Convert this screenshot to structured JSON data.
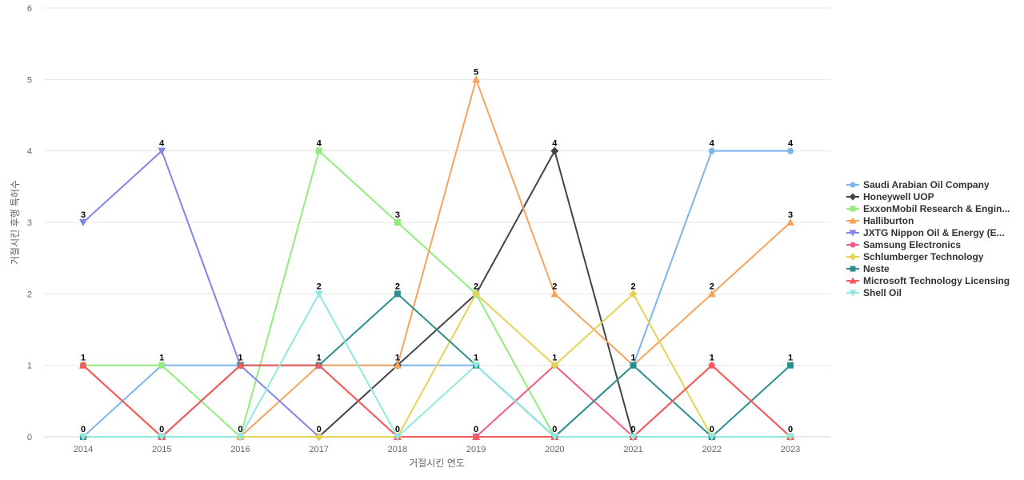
{
  "chart_data": {
    "type": "line",
    "title": "",
    "xlabel": "거절시킨 연도",
    "ylabel": "거절시킨 후행 특허수",
    "ylim": [
      0,
      6
    ],
    "y_ticks": [
      0,
      1,
      2,
      3,
      4,
      5,
      6
    ],
    "grid": true,
    "legend_position": "right",
    "categories": [
      "2014",
      "2015",
      "2016",
      "2017",
      "2018",
      "2019",
      "2020",
      "2021",
      "2022",
      "2023"
    ],
    "series": [
      {
        "name": "Saudi Arabian Oil Company",
        "color": "#7cb5ec",
        "marker": "circle",
        "values": [
          0,
          1,
          1,
          1,
          1,
          1,
          0,
          1,
          4,
          4
        ]
      },
      {
        "name": "Honeywell UOP",
        "color": "#434348",
        "marker": "diamond",
        "values": [
          0,
          0,
          0,
          0,
          1,
          2,
          4,
          0,
          0,
          0
        ]
      },
      {
        "name": "ExxonMobil Research & Engin...",
        "color": "#90ed7d",
        "marker": "square",
        "values": [
          1,
          1,
          0,
          4,
          3,
          2,
          0,
          0,
          0,
          0
        ]
      },
      {
        "name": "Halliburton",
        "color": "#f7a35c",
        "marker": "triangle",
        "values": [
          1,
          0,
          0,
          1,
          1,
          5,
          2,
          1,
          2,
          3
        ]
      },
      {
        "name": "JXTG Nippon Oil & Energy (E...",
        "color": "#8085e9",
        "marker": "triangle-down",
        "values": [
          3,
          4,
          1,
          0,
          0,
          0,
          0,
          0,
          0,
          0
        ]
      },
      {
        "name": "Samsung Electronics",
        "color": "#f15c80",
        "marker": "circle",
        "values": [
          1,
          0,
          1,
          1,
          0,
          0,
          1,
          0,
          1,
          0
        ]
      },
      {
        "name": "Schlumberger Technology",
        "color": "#e4d354",
        "marker": "diamond",
        "values": [
          0,
          0,
          0,
          0,
          0,
          2,
          1,
          2,
          0,
          0
        ]
      },
      {
        "name": "Neste",
        "color": "#2b908f",
        "marker": "square",
        "values": [
          0,
          0,
          1,
          1,
          2,
          1,
          0,
          1,
          0,
          1
        ]
      },
      {
        "name": "Microsoft Technology Licensing",
        "color": "#f45b5b",
        "marker": "triangle",
        "values": [
          1,
          0,
          1,
          1,
          0,
          0,
          0,
          0,
          1,
          0
        ]
      },
      {
        "name": "Shell Oil",
        "color": "#91e8e1",
        "marker": "triangle-down",
        "values": [
          0,
          0,
          0,
          2,
          0,
          1,
          0,
          0,
          0,
          0
        ]
      }
    ],
    "data_labels": [
      {
        "category": "2014",
        "text": "3",
        "value": 3
      },
      {
        "category": "2014",
        "text": "1",
        "value": 1
      },
      {
        "category": "2014",
        "text": "0",
        "value": 0
      },
      {
        "category": "2015",
        "text": "4",
        "value": 4
      },
      {
        "category": "2015",
        "text": "1",
        "value": 1
      },
      {
        "category": "2015",
        "text": "0",
        "value": 0
      },
      {
        "category": "2016",
        "text": "1",
        "value": 1
      },
      {
        "category": "2016",
        "text": "0",
        "value": 0
      },
      {
        "category": "2017",
        "text": "4",
        "value": 4
      },
      {
        "category": "2017",
        "text": "2",
        "value": 2
      },
      {
        "category": "2017",
        "text": "1",
        "value": 1
      },
      {
        "category": "2017",
        "text": "0",
        "value": 0
      },
      {
        "category": "2018",
        "text": "3",
        "value": 3
      },
      {
        "category": "2018",
        "text": "2",
        "value": 2
      },
      {
        "category": "2018",
        "text": "1",
        "value": 1
      },
      {
        "category": "2018",
        "text": "0",
        "value": 0
      },
      {
        "category": "2019",
        "text": "5",
        "value": 5
      },
      {
        "category": "2019",
        "text": "2",
        "value": 2
      },
      {
        "category": "2019",
        "text": "1",
        "value": 1
      },
      {
        "category": "2019",
        "text": "0",
        "value": 0
      },
      {
        "category": "2020",
        "text": "4",
        "value": 4
      },
      {
        "category": "2020",
        "text": "2",
        "value": 2
      },
      {
        "category": "2020",
        "text": "1",
        "value": 1
      },
      {
        "category": "2020",
        "text": "0",
        "value": 0
      },
      {
        "category": "2021",
        "text": "2",
        "value": 2
      },
      {
        "category": "2021",
        "text": "1",
        "value": 1
      },
      {
        "category": "2021",
        "text": "0",
        "value": 0
      },
      {
        "category": "2022",
        "text": "4",
        "value": 4
      },
      {
        "category": "2022",
        "text": "2",
        "value": 2
      },
      {
        "category": "2022",
        "text": "1",
        "value": 1
      },
      {
        "category": "2022",
        "text": "0",
        "value": 0
      },
      {
        "category": "2023",
        "text": "4",
        "value": 4
      },
      {
        "category": "2023",
        "text": "3",
        "value": 3
      },
      {
        "category": "2023",
        "text": "1",
        "value": 1
      },
      {
        "category": "2023",
        "text": "0",
        "value": 0
      }
    ]
  }
}
